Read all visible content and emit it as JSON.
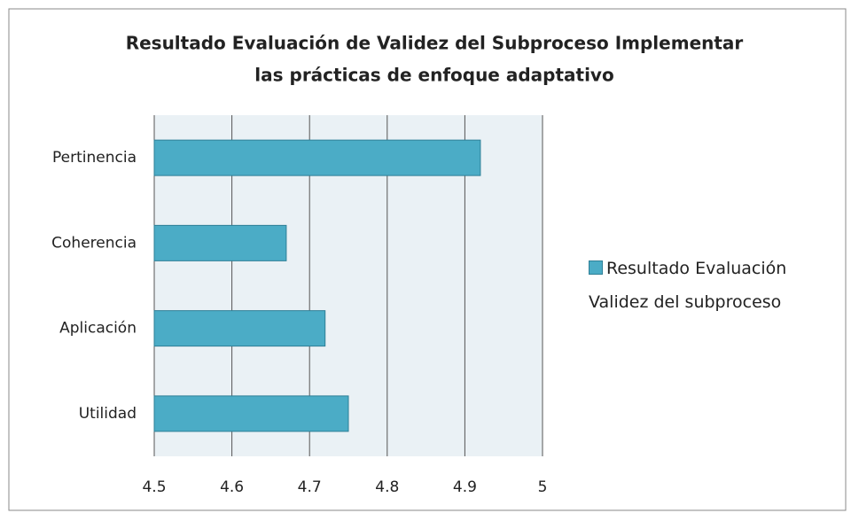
{
  "chart_data": {
    "type": "bar",
    "orientation": "horizontal",
    "title": [
      "Resultado Evaluación de Validez del Subproceso Implementar",
      "las prácticas de enfoque adaptativo"
    ],
    "categories": [
      "Pertinencia",
      "Coherencia",
      "Aplicación",
      "Utilidad"
    ],
    "series": [
      {
        "name": "Resultado Evaluación Validez del subproceso",
        "color": "#4bacc6",
        "values": [
          4.92,
          4.67,
          4.72,
          4.75
        ]
      }
    ],
    "xlim": [
      4.5,
      5
    ],
    "xticks": [
      4.5,
      4.6,
      4.7,
      4.8,
      4.9,
      5
    ],
    "grid": true,
    "legend": "right"
  }
}
